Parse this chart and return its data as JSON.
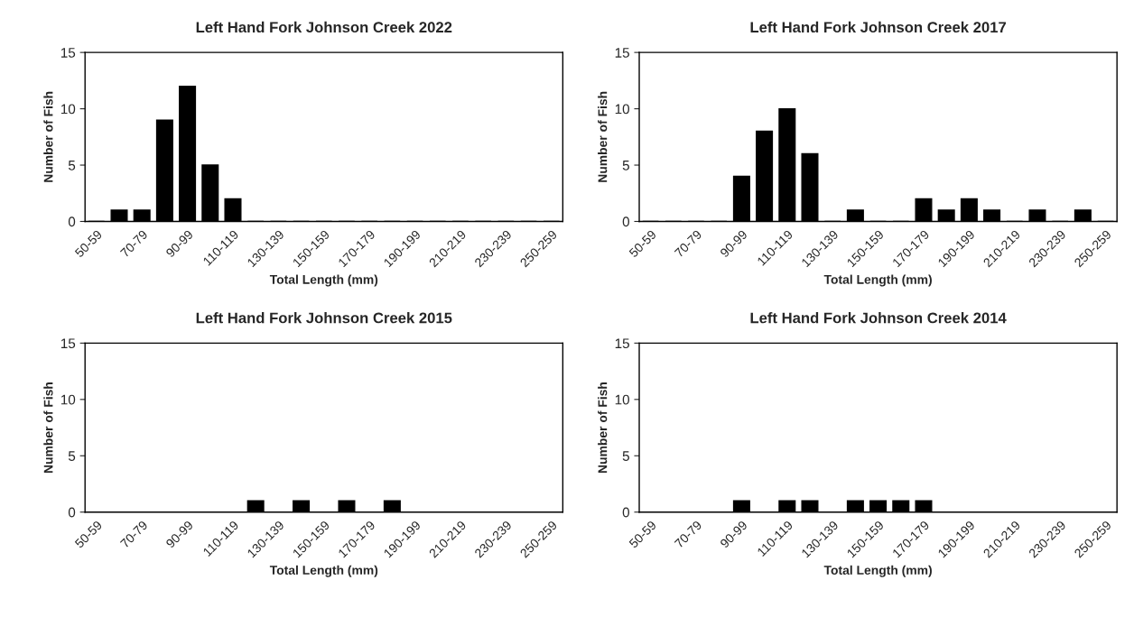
{
  "chart_data": [
    {
      "type": "bar",
      "title": "Left Hand Fork Johnson Creek 2022",
      "xlabel": "Total Length (mm)",
      "ylabel": "Number of Fish",
      "categories": [
        "50-59",
        null,
        "70-79",
        null,
        "90-99",
        null,
        "110-119",
        null,
        "130-139",
        null,
        "150-159",
        null,
        "170-179",
        null,
        "190-199",
        null,
        "210-219",
        null,
        "230-239",
        null,
        "250-259"
      ],
      "values": [
        0,
        1,
        1,
        9,
        12,
        5,
        2,
        0,
        0,
        0,
        0,
        0,
        0,
        0,
        0,
        0,
        0,
        0,
        0,
        0,
        0
      ],
      "color": "#000000",
      "ylim": [
        0,
        15
      ],
      "yticks": [
        0,
        5,
        10,
        15
      ]
    },
    {
      "type": "bar",
      "title": "Left Hand Fork Johnson Creek 2017",
      "xlabel": "Total Length (mm)",
      "ylabel": "Number of Fish",
      "categories": [
        "50-59",
        null,
        "70-79",
        null,
        "90-99",
        null,
        "110-119",
        null,
        "130-139",
        null,
        "150-159",
        null,
        "170-179",
        null,
        "190-199",
        null,
        "210-219",
        null,
        "230-239",
        null,
        "250-259"
      ],
      "values": [
        0,
        0,
        0,
        0,
        4,
        8,
        10,
        6,
        0,
        1,
        0,
        0,
        2,
        1,
        2,
        1,
        0,
        1,
        0,
        1,
        0
      ],
      "color": "#000000",
      "ylim": [
        0,
        15
      ],
      "yticks": [
        0,
        5,
        10,
        15
      ]
    },
    {
      "type": "bar",
      "title": "Left Hand Fork Johnson Creek 2015",
      "xlabel": "Total Length (mm)",
      "ylabel": "Number of Fish",
      "categories": [
        "50-59",
        null,
        "70-79",
        null,
        "90-99",
        null,
        "110-119",
        null,
        "130-139",
        null,
        "150-159",
        null,
        "170-179",
        null,
        "190-199",
        null,
        "210-219",
        null,
        "230-239",
        null,
        "250-259"
      ],
      "values": [
        0,
        0,
        0,
        0,
        0,
        0,
        0,
        1,
        0,
        1,
        0,
        1,
        0,
        1,
        0,
        0,
        0,
        0,
        0,
        0,
        0
      ],
      "color": "#000000",
      "ylim": [
        0,
        15
      ],
      "yticks": [
        0,
        5,
        10,
        15
      ]
    },
    {
      "type": "bar",
      "title": "Left Hand Fork Johnson Creek 2014",
      "xlabel": "Total Length (mm)",
      "ylabel": "Number of Fish",
      "categories": [
        "50-59",
        null,
        "70-79",
        null,
        "90-99",
        null,
        "110-119",
        null,
        "130-139",
        null,
        "150-159",
        null,
        "170-179",
        null,
        "190-199",
        null,
        "210-219",
        null,
        "230-239",
        null,
        "250-259"
      ],
      "values": [
        0,
        0,
        0,
        0,
        1,
        0,
        1,
        1,
        0,
        1,
        1,
        1,
        1,
        0,
        0,
        0,
        0,
        0,
        0,
        0,
        0
      ],
      "color": "#000000",
      "ylim": [
        0,
        15
      ],
      "yticks": [
        0,
        5,
        10,
        15
      ]
    }
  ]
}
